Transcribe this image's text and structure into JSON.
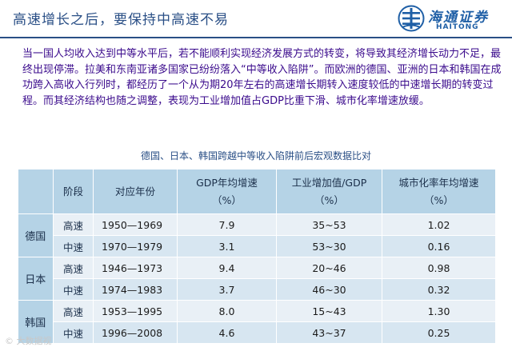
{
  "header": {
    "title": "高速增长之后，要保持中高速不易",
    "logo_cn": "海通证券",
    "logo_en": "HAITONG"
  },
  "intro": "当一国人均收入达到中等水平后，若不能顺利实现经济发展方式的转变，将导致其经济增长动力不足，最终出现停滞。拉美和东南亚诸多国家已纷纷落入“中等收入陷阱”。而欧洲的德国、亚洲的日本和韩国在成功跨入高收入行列时，都经历了一个从为期20年左右的高速增长期转入速度较低的中速增长期的转变过程。而其经济结构也随之调整，表现为工业增加值占GDP比重下滑、城市化率增速放缓。",
  "table": {
    "caption": "德国、日本、韩国跨越中等收入陷阱前后宏观数据比对",
    "headers": {
      "stage": "阶段",
      "years": "对应年份",
      "gdp_line1": "GDP年均增速",
      "gdp_line2": "（%）",
      "ind_line1": "工业增加值/GDP",
      "ind_line2": "（%）",
      "urb_line1": "城市化率年均增速",
      "urb_line2": "（%）"
    },
    "groups": [
      {
        "country": "德国",
        "rows": [
          {
            "stage": "高速",
            "years": "1950—1969",
            "gdp": "7.9",
            "industry": "35~53",
            "urban": "1.02"
          },
          {
            "stage": "中速",
            "years": "1970—1979",
            "gdp": "3.1",
            "industry": "53~30",
            "urban": "0.16"
          }
        ]
      },
      {
        "country": "日本",
        "rows": [
          {
            "stage": "高速",
            "years": "1946—1973",
            "gdp": "9.4",
            "industry": "20~46",
            "urban": "0.98"
          },
          {
            "stage": "中速",
            "years": "1974—1983",
            "gdp": "3.7",
            "industry": "46~30",
            "urban": "0.32"
          }
        ]
      },
      {
        "country": "韩国",
        "rows": [
          {
            "stage": "高速",
            "years": "1953—1995",
            "gdp": "8.0",
            "industry": "15~43",
            "urban": "1.30"
          },
          {
            "stage": "中速",
            "years": "1996—2008",
            "gdp": "4.6",
            "industry": "43~37",
            "urban": "0.25"
          }
        ]
      }
    ]
  },
  "watermark": "© 大数据视",
  "colors": {
    "title": "#2a4f86",
    "intro_text": "#3a0a8c",
    "table_header": "#b5d3e6",
    "row_light": "#e9f0f6",
    "row_dark": "#d7e6f1",
    "logo": "#1f5fa6"
  }
}
